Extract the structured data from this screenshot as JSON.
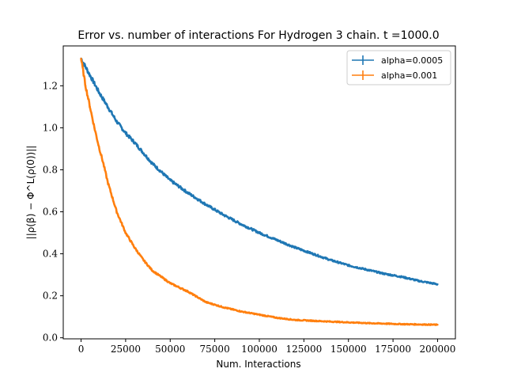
{
  "chart_data": {
    "type": "line",
    "title": "Error vs. number of interactions For Hydrogen 3 chain. t =1000.0",
    "xlabel": "Num. Interactions",
    "ylabel": "||ρ(β) − Φ^L(ρ(0))||",
    "xlim": [
      -10000,
      210000
    ],
    "ylim": [
      -0.005,
      1.39
    ],
    "xticks": [
      0,
      25000,
      50000,
      75000,
      100000,
      125000,
      150000,
      175000,
      200000
    ],
    "yticks": [
      0.0,
      0.2,
      0.4,
      0.6,
      0.8,
      1.0,
      1.2
    ],
    "xtick_labels": [
      "0",
      "25000",
      "50000",
      "75000",
      "100000",
      "125000",
      "150000",
      "175000",
      "200000"
    ],
    "ytick_labels": [
      "0.0",
      "0.2",
      "0.4",
      "0.6",
      "0.8",
      "1.0",
      "1.2"
    ],
    "grid": false,
    "legend_position": "top-right",
    "series": [
      {
        "name": "alpha=0.0005",
        "color": "#1f77b4",
        "x": [
          0,
          5000,
          10000,
          15000,
          20000,
          25000,
          30000,
          40000,
          50000,
          60000,
          70000,
          80000,
          90000,
          100000,
          110000,
          120000,
          130000,
          140000,
          150000,
          160000,
          170000,
          180000,
          190000,
          200000
        ],
        "y": [
          1.33,
          1.25,
          1.17,
          1.1,
          1.03,
          0.975,
          0.93,
          0.83,
          0.75,
          0.69,
          0.635,
          0.585,
          0.54,
          0.5,
          0.465,
          0.43,
          0.4,
          0.37,
          0.345,
          0.325,
          0.305,
          0.29,
          0.27,
          0.255
        ]
      },
      {
        "name": "alpha=0.001",
        "color": "#ff7f0e",
        "x": [
          0,
          2500,
          5000,
          7500,
          10000,
          12500,
          15000,
          17500,
          20000,
          25000,
          30000,
          35000,
          40000,
          45000,
          50000,
          60000,
          70000,
          80000,
          90000,
          100000,
          110000,
          120000,
          140000,
          160000,
          180000,
          200000
        ],
        "y": [
          1.33,
          1.2,
          1.1,
          1.0,
          0.91,
          0.83,
          0.74,
          0.67,
          0.6,
          0.5,
          0.43,
          0.37,
          0.32,
          0.29,
          0.26,
          0.22,
          0.17,
          0.145,
          0.125,
          0.11,
          0.095,
          0.085,
          0.077,
          0.07,
          0.065,
          0.062
        ]
      }
    ]
  }
}
